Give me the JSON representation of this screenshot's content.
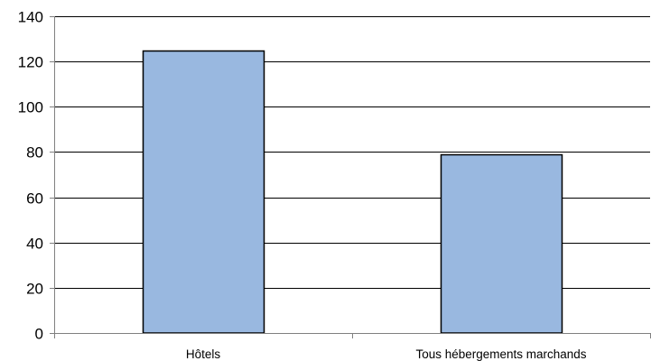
{
  "chart_data": {
    "type": "bar",
    "title": "",
    "xlabel": "",
    "ylabel": "",
    "categories": [
      "Hôtels",
      "Tous hébergements marchands"
    ],
    "values": [
      125,
      79
    ],
    "ylim": [
      0,
      140
    ],
    "yticks": [
      0,
      20,
      40,
      60,
      80,
      100,
      120,
      140
    ],
    "grid": true,
    "legend": false,
    "colors": {
      "bar_fill": "#99b8e0",
      "bar_stroke": "#000000",
      "gridline": "#000000",
      "axis": "#808080"
    }
  }
}
